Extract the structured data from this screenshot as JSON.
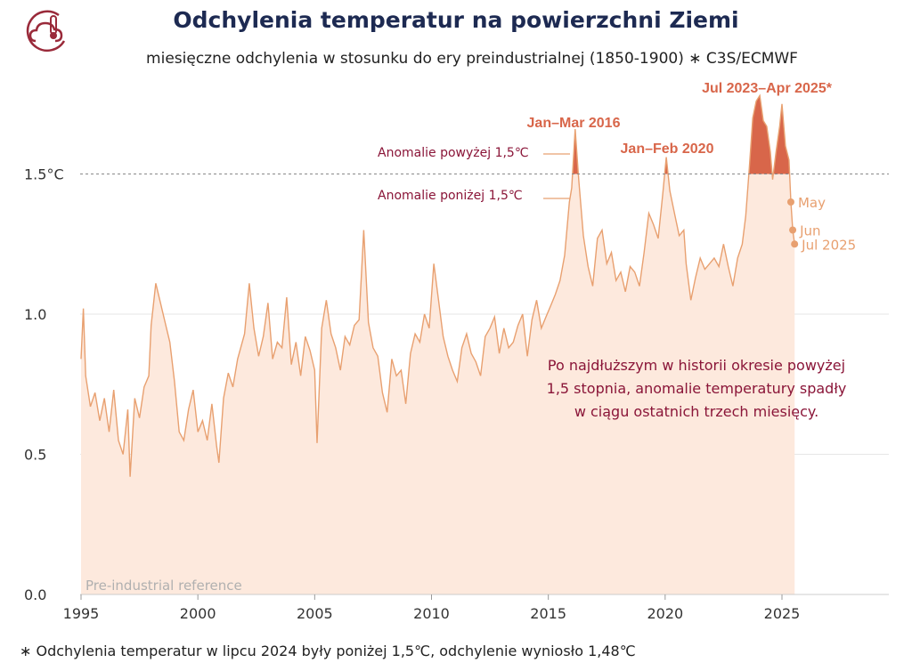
{
  "header": {
    "title": "Odchylenia temperatur na powierzchni Ziemi",
    "subtitle": "miesięczne odchylenia w stosunku do ery preindustrialnej (1850-1900) ∗ C3S/ECMWF"
  },
  "footnote": "∗ Odchylenia temperatur w lipcu 2024 były poniżej 1,5℃, odchylenie wyniosło 1,48℃",
  "colors": {
    "line": "#e8a070",
    "area": "#fde9dd",
    "highlight": "#d8664a",
    "threshold": "#888888",
    "annotation_dark": "#8a1538",
    "title": "#1d2a52"
  },
  "logo_icon": "thermometer-cloud-icon",
  "chart_data": {
    "type": "area",
    "title": "Odchylenia temperatur na powierzchni Ziemi",
    "xlabel": "",
    "ylabel": "",
    "xlim": [
      1995,
      2029
    ],
    "ylim": [
      0,
      1.82
    ],
    "grid": "horizontal",
    "x_ticks": [
      {
        "value": 1995,
        "label": "1995"
      },
      {
        "value": 2000,
        "label": "2000"
      },
      {
        "value": 2005,
        "label": "2005"
      },
      {
        "value": 2010,
        "label": "2010"
      },
      {
        "value": 2015,
        "label": "2015"
      },
      {
        "value": 2020,
        "label": "2020"
      },
      {
        "value": 2025,
        "label": "2025"
      }
    ],
    "y_ticks": [
      {
        "value": 0.0,
        "label": "0.0"
      },
      {
        "value": 0.5,
        "label": "0.5"
      },
      {
        "value": 1.0,
        "label": "1.0"
      },
      {
        "value": 1.5,
        "label": "1.5°C"
      }
    ],
    "threshold": 1.5,
    "series": [
      {
        "points": [
          [
            1995.0,
            0.84
          ],
          [
            1995.1,
            1.02
          ],
          [
            1995.2,
            0.78
          ],
          [
            1995.4,
            0.67
          ],
          [
            1995.6,
            0.72
          ],
          [
            1995.8,
            0.62
          ],
          [
            1996.0,
            0.7
          ],
          [
            1996.2,
            0.58
          ],
          [
            1996.4,
            0.73
          ],
          [
            1996.6,
            0.55
          ],
          [
            1996.8,
            0.5
          ],
          [
            1997.0,
            0.66
          ],
          [
            1997.1,
            0.42
          ],
          [
            1997.3,
            0.7
          ],
          [
            1997.5,
            0.63
          ],
          [
            1997.7,
            0.74
          ],
          [
            1997.9,
            0.78
          ],
          [
            1998.0,
            0.96
          ],
          [
            1998.2,
            1.11
          ],
          [
            1998.4,
            1.04
          ],
          [
            1998.6,
            0.97
          ],
          [
            1998.8,
            0.9
          ],
          [
            1999.0,
            0.76
          ],
          [
            1999.2,
            0.58
          ],
          [
            1999.4,
            0.55
          ],
          [
            1999.6,
            0.66
          ],
          [
            1999.8,
            0.73
          ],
          [
            2000.0,
            0.58
          ],
          [
            2000.2,
            0.62
          ],
          [
            2000.4,
            0.55
          ],
          [
            2000.6,
            0.68
          ],
          [
            2000.8,
            0.53
          ],
          [
            2000.9,
            0.47
          ],
          [
            2001.1,
            0.7
          ],
          [
            2001.3,
            0.79
          ],
          [
            2001.5,
            0.74
          ],
          [
            2001.7,
            0.84
          ],
          [
            2002.0,
            0.93
          ],
          [
            2002.2,
            1.11
          ],
          [
            2002.4,
            0.95
          ],
          [
            2002.6,
            0.85
          ],
          [
            2002.8,
            0.92
          ],
          [
            2003.0,
            1.04
          ],
          [
            2003.2,
            0.84
          ],
          [
            2003.4,
            0.9
          ],
          [
            2003.6,
            0.88
          ],
          [
            2003.8,
            1.06
          ],
          [
            2004.0,
            0.82
          ],
          [
            2004.2,
            0.9
          ],
          [
            2004.4,
            0.78
          ],
          [
            2004.6,
            0.92
          ],
          [
            2004.8,
            0.87
          ],
          [
            2005.0,
            0.8
          ],
          [
            2005.1,
            0.54
          ],
          [
            2005.3,
            0.95
          ],
          [
            2005.5,
            1.05
          ],
          [
            2005.7,
            0.93
          ],
          [
            2005.9,
            0.88
          ],
          [
            2006.1,
            0.8
          ],
          [
            2006.3,
            0.92
          ],
          [
            2006.5,
            0.89
          ],
          [
            2006.7,
            0.96
          ],
          [
            2006.9,
            0.98
          ],
          [
            2007.1,
            1.3
          ],
          [
            2007.3,
            0.97
          ],
          [
            2007.5,
            0.88
          ],
          [
            2007.7,
            0.85
          ],
          [
            2007.9,
            0.72
          ],
          [
            2008.1,
            0.65
          ],
          [
            2008.3,
            0.84
          ],
          [
            2008.5,
            0.78
          ],
          [
            2008.7,
            0.8
          ],
          [
            2008.9,
            0.68
          ],
          [
            2009.1,
            0.86
          ],
          [
            2009.3,
            0.93
          ],
          [
            2009.5,
            0.9
          ],
          [
            2009.7,
            1.0
          ],
          [
            2009.9,
            0.95
          ],
          [
            2010.1,
            1.18
          ],
          [
            2010.3,
            1.05
          ],
          [
            2010.5,
            0.92
          ],
          [
            2010.7,
            0.85
          ],
          [
            2010.9,
            0.8
          ],
          [
            2011.1,
            0.76
          ],
          [
            2011.3,
            0.88
          ],
          [
            2011.5,
            0.93
          ],
          [
            2011.7,
            0.86
          ],
          [
            2011.9,
            0.83
          ],
          [
            2012.1,
            0.78
          ],
          [
            2012.3,
            0.92
          ],
          [
            2012.5,
            0.95
          ],
          [
            2012.7,
            0.99
          ],
          [
            2012.9,
            0.86
          ],
          [
            2013.1,
            0.95
          ],
          [
            2013.3,
            0.88
          ],
          [
            2013.5,
            0.9
          ],
          [
            2013.7,
            0.96
          ],
          [
            2013.9,
            1.0
          ],
          [
            2014.1,
            0.85
          ],
          [
            2014.3,
            0.98
          ],
          [
            2014.5,
            1.05
          ],
          [
            2014.7,
            0.95
          ],
          [
            2014.9,
            0.99
          ],
          [
            2015.1,
            1.03
          ],
          [
            2015.3,
            1.07
          ],
          [
            2015.5,
            1.12
          ],
          [
            2015.7,
            1.21
          ],
          [
            2015.9,
            1.4
          ],
          [
            2016.0,
            1.45
          ],
          [
            2016.15,
            1.66
          ],
          [
            2016.3,
            1.48
          ],
          [
            2016.5,
            1.28
          ],
          [
            2016.7,
            1.17
          ],
          [
            2016.9,
            1.1
          ],
          [
            2017.1,
            1.27
          ],
          [
            2017.3,
            1.3
          ],
          [
            2017.5,
            1.18
          ],
          [
            2017.7,
            1.22
          ],
          [
            2017.9,
            1.12
          ],
          [
            2018.1,
            1.15
          ],
          [
            2018.3,
            1.08
          ],
          [
            2018.5,
            1.17
          ],
          [
            2018.7,
            1.15
          ],
          [
            2018.9,
            1.1
          ],
          [
            2019.1,
            1.22
          ],
          [
            2019.3,
            1.36
          ],
          [
            2019.5,
            1.32
          ],
          [
            2019.7,
            1.27
          ],
          [
            2019.9,
            1.43
          ],
          [
            2020.05,
            1.56
          ],
          [
            2020.2,
            1.44
          ],
          [
            2020.4,
            1.36
          ],
          [
            2020.6,
            1.28
          ],
          [
            2020.8,
            1.3
          ],
          [
            2020.9,
            1.18
          ],
          [
            2021.1,
            1.05
          ],
          [
            2021.3,
            1.13
          ],
          [
            2021.5,
            1.2
          ],
          [
            2021.7,
            1.16
          ],
          [
            2021.9,
            1.18
          ],
          [
            2022.1,
            1.2
          ],
          [
            2022.3,
            1.17
          ],
          [
            2022.5,
            1.25
          ],
          [
            2022.7,
            1.17
          ],
          [
            2022.9,
            1.1
          ],
          [
            2023.1,
            1.2
          ],
          [
            2023.3,
            1.25
          ],
          [
            2023.45,
            1.35
          ],
          [
            2023.6,
            1.52
          ],
          [
            2023.75,
            1.7
          ],
          [
            2023.9,
            1.76
          ],
          [
            2024.05,
            1.78
          ],
          [
            2024.2,
            1.69
          ],
          [
            2024.35,
            1.67
          ],
          [
            2024.5,
            1.58
          ],
          [
            2024.6,
            1.48
          ],
          [
            2024.75,
            1.58
          ],
          [
            2024.9,
            1.67
          ],
          [
            2025.0,
            1.75
          ],
          [
            2025.15,
            1.6
          ],
          [
            2025.3,
            1.55
          ],
          [
            2025.38,
            1.4
          ],
          [
            2025.46,
            1.3
          ],
          [
            2025.54,
            1.25
          ]
        ]
      }
    ],
    "highlight_points": [
      {
        "x": 2025.38,
        "y": 1.4,
        "label": "May"
      },
      {
        "x": 2025.46,
        "y": 1.3,
        "label": "Jun"
      },
      {
        "x": 2025.54,
        "y": 1.25,
        "label": "Jul 2025"
      }
    ],
    "annotations": {
      "peak_2016": "Jan–Mar 2016",
      "peak_2020": "Jan–Feb 2020",
      "peak_2023": "Jul 2023–Apr 2025*",
      "above": "Anomalie powyżej 1,5℃",
      "below": "Anomalie poniżej 1,5℃",
      "reference": "Pre-industrial reference",
      "callout_lines": [
        "Po najdłuższym w historii okresie powyżej",
        "1,5 stopnia, anomalie temperatury spadły",
        "w ciągu ostatnich trzech miesięcy."
      ]
    }
  }
}
